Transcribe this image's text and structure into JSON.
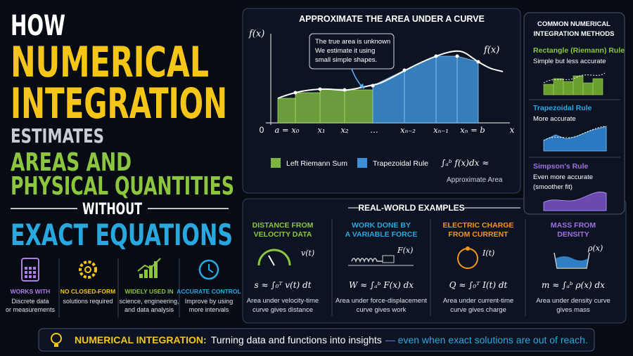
{
  "title": {
    "lines": [
      "HOW",
      "NUMERICAL",
      "INTEGRATION",
      "ESTIMATES",
      "AREAS AND",
      "PHYSICAL QUANTITIES",
      "WITHOUT",
      "EXACT EQUATIONS"
    ]
  },
  "features": [
    {
      "title": "WORKS WITH",
      "lines": [
        "Discrete data",
        "or measurements"
      ]
    },
    {
      "title": "NO CLOSED-FORM",
      "lines": [
        "solutions required"
      ]
    },
    {
      "title": "WIDELY USED IN",
      "lines": [
        "science, engineering,",
        "and data analysis"
      ]
    },
    {
      "title": "ACCURATE CONTROL",
      "lines": [
        "Improve by using",
        "more intervals"
      ]
    }
  ],
  "curve_panel": {
    "title": "APPROXIMATE THE AREA UNDER A CURVE",
    "y_label": "f(x)",
    "curve_label": "f(x)",
    "callout": [
      "The true area is unknown",
      "We estimate it using",
      "small simple shapes."
    ],
    "origin": "0",
    "x_labels": [
      "a = x₀",
      "x₁",
      "x₂",
      "…",
      "xₙ₋₂",
      "xₙ₋₁",
      "xₙ = b"
    ],
    "x_axis": "x",
    "legend": [
      "Left Riemann Sum",
      "Trapezoidal Rule"
    ],
    "formula": "∫ₐᵇ f(x)dx ≈",
    "formula_caption": "Approximate Area"
  },
  "methods": {
    "title": [
      "COMMON NUMERICAL",
      "INTEGRATION METHODS"
    ],
    "items": [
      {
        "name": "Rectangle (Riemann) Rule",
        "lines": [
          "Simple but less accurate"
        ]
      },
      {
        "name": "Trapezoidal Rule",
        "lines": [
          "More accurate"
        ]
      },
      {
        "name": "Simpson's Rule",
        "lines": [
          "Even more accurate",
          "(smoother fit)"
        ]
      }
    ]
  },
  "examples": {
    "title": "REAL-WORLD EXAMPLES",
    "items": [
      {
        "title": [
          "DISTANCE FROM",
          "VELOCITY DATA"
        ],
        "var": "v(t)",
        "formula": "s ≈ ∫₀ᵀ v(t) dt",
        "caption": [
          "Area under velocity-time",
          "curve gives distance"
        ]
      },
      {
        "title": [
          "WORK DONE BY",
          "A VARIABLE FORCE"
        ],
        "var": "F(x)",
        "formula": "W ≈ ∫ₐᵇ F(x) dx",
        "caption": [
          "Area under force-displacement",
          "curve gives work"
        ]
      },
      {
        "title": [
          "ELECTRIC CHARGE",
          "FROM CURRENT"
        ],
        "var": "I(t)",
        "formula": "Q ≈ ∫₀ᵀ I(t) dt",
        "caption": [
          "Area under current-time",
          "curve gives charge"
        ]
      },
      {
        "title": [
          "MASS FROM",
          "DENSITY"
        ],
        "var": "ρ(x)",
        "formula": "m ≈ ∫ₐᵇ ρ(x) dx",
        "caption": [
          "Area under density curve",
          "gives mass"
        ]
      }
    ]
  },
  "banner": {
    "lead": "NUMERICAL INTEGRATION:",
    "text": "Turning data and functions into insights",
    "emphasis": "— even when exact solutions are out of reach."
  }
}
